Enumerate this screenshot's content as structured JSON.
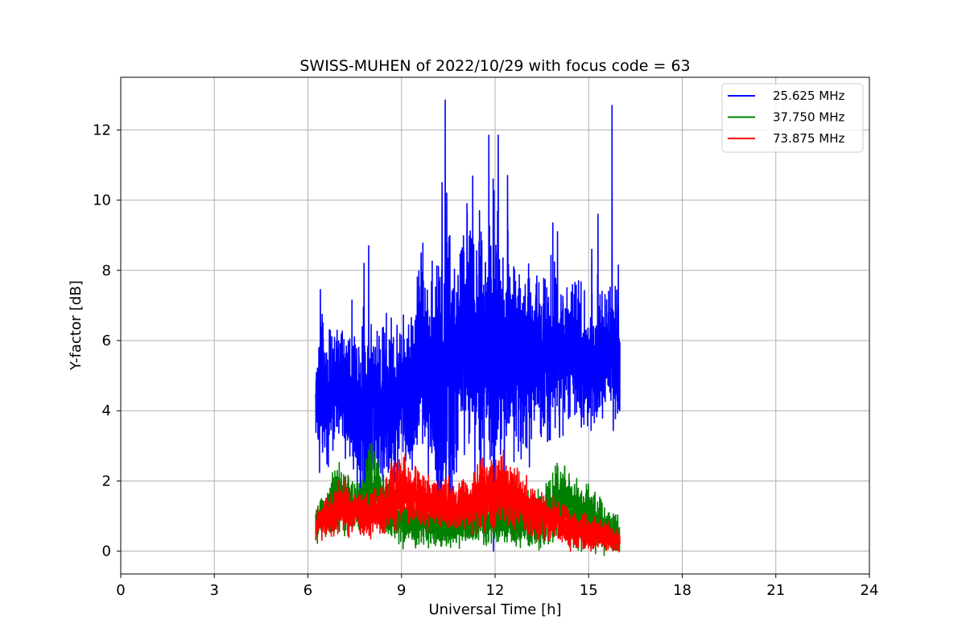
{
  "chart_data": {
    "type": "line",
    "title": "SWISS-MUHEN of 2022/10/29 with focus code = 63",
    "xlabel": "Universal Time [h]",
    "ylabel": "Y-factor [dB]",
    "xlim": [
      0,
      24
    ],
    "ylim": [
      -0.65,
      13.5
    ],
    "xticks": [
      0,
      3,
      6,
      9,
      12,
      15,
      18,
      21,
      24
    ],
    "yticks": [
      0,
      2,
      4,
      6,
      8,
      10,
      12
    ],
    "grid": true,
    "legend_position": "top-right",
    "series": [
      {
        "name": "25.625 MHz",
        "color": "#0000ff",
        "x": [
          6.25,
          6.4,
          6.6,
          6.8,
          7.0,
          7.2,
          7.4,
          7.6,
          7.8,
          7.9,
          8.0,
          8.2,
          8.4,
          8.6,
          8.8,
          9.0,
          9.2,
          9.4,
          9.6,
          9.8,
          10.0,
          10.2,
          10.4,
          10.5,
          10.6,
          10.8,
          11.0,
          11.2,
          11.4,
          11.6,
          11.8,
          12.0,
          12.2,
          12.4,
          12.6,
          12.8,
          13.0,
          13.2,
          13.4,
          13.6,
          13.8,
          14.0,
          14.2,
          14.4,
          14.6,
          14.8,
          15.0,
          15.2,
          15.4,
          15.6,
          15.7,
          15.8,
          16.0
        ],
        "y": [
          4.3,
          4.6,
          4.4,
          4.5,
          4.7,
          4.6,
          4.5,
          4.4,
          4.2,
          4.0,
          4.3,
          4.5,
          4.1,
          4.2,
          4.3,
          4.6,
          4.4,
          4.8,
          5.6,
          5.4,
          5.0,
          4.4,
          4.8,
          5.2,
          4.6,
          5.2,
          6.4,
          6.5,
          6.2,
          6.0,
          5.8,
          5.4,
          5.8,
          6.0,
          5.6,
          5.4,
          5.6,
          5.5,
          5.7,
          5.8,
          5.6,
          5.8,
          5.6,
          5.5,
          5.7,
          5.4,
          5.2,
          5.6,
          5.4,
          5.6,
          5.8,
          5.5,
          5.4
        ],
        "amplitude": [
          0.6,
          1.2,
          0.8,
          0.9,
          0.9,
          1.1,
          1.0,
          1.2,
          1.4,
          1.5,
          1.3,
          1.0,
          1.3,
          1.2,
          1.2,
          1.0,
          1.1,
          1.3,
          1.4,
          1.4,
          1.5,
          2.0,
          2.4,
          2.2,
          2.0,
          1.5,
          1.6,
          1.8,
          1.8,
          1.9,
          2.0,
          2.3,
          1.7,
          1.6,
          1.3,
          1.2,
          1.5,
          1.1,
          1.2,
          1.2,
          1.3,
          1.1,
          1.0,
          0.9,
          1.0,
          1.0,
          1.1,
          1.0,
          0.9,
          0.9,
          0.9,
          1.0,
          0.8
        ],
        "spikes": [
          {
            "x": 6.4,
            "y": 7.45
          },
          {
            "x": 7.8,
            "y": 8.2
          },
          {
            "x": 7.95,
            "y": 8.7
          },
          {
            "x": 8.4,
            "y": 2.0
          },
          {
            "x": 8.75,
            "y": 2.6
          },
          {
            "x": 9.2,
            "y": 3.0
          },
          {
            "x": 10.3,
            "y": 10.5
          },
          {
            "x": 10.4,
            "y": 12.85
          },
          {
            "x": 10.45,
            "y": 10.2
          },
          {
            "x": 10.2,
            "y": 2.3
          },
          {
            "x": 10.9,
            "y": 8.4
          },
          {
            "x": 11.1,
            "y": 9.9
          },
          {
            "x": 11.5,
            "y": 9.7
          },
          {
            "x": 11.65,
            "y": 2.2
          },
          {
            "x": 11.8,
            "y": 11.85
          },
          {
            "x": 11.95,
            "y": 0.0
          },
          {
            "x": 12.1,
            "y": 11.85
          },
          {
            "x": 12.4,
            "y": 10.7
          },
          {
            "x": 12.3,
            "y": 1.7
          },
          {
            "x": 12.6,
            "y": 8.1
          },
          {
            "x": 13.1,
            "y": 2.4
          },
          {
            "x": 13.85,
            "y": 9.35
          },
          {
            "x": 14.0,
            "y": 9.1
          },
          {
            "x": 15.1,
            "y": 8.6
          },
          {
            "x": 15.3,
            "y": 9.6
          },
          {
            "x": 15.75,
            "y": 12.7
          },
          {
            "x": 15.95,
            "y": 8.15
          }
        ]
      },
      {
        "name": "37.750 MHz",
        "color": "#008000",
        "x": [
          6.25,
          6.5,
          6.75,
          7.0,
          7.25,
          7.5,
          7.75,
          8.0,
          8.25,
          8.5,
          8.75,
          9.0,
          9.25,
          9.5,
          9.75,
          10.0,
          10.25,
          10.5,
          10.75,
          11.0,
          11.25,
          11.5,
          11.75,
          12.0,
          12.25,
          12.5,
          12.75,
          13.0,
          13.25,
          13.5,
          13.75,
          14.0,
          14.25,
          14.5,
          14.75,
          15.0,
          15.25,
          15.5,
          15.75,
          16.0
        ],
        "y": [
          0.8,
          1.0,
          1.3,
          1.5,
          1.3,
          1.2,
          1.4,
          2.0,
          1.8,
          1.2,
          1.0,
          0.9,
          0.8,
          0.9,
          0.8,
          0.7,
          0.8,
          0.7,
          0.7,
          0.9,
          0.8,
          0.8,
          0.8,
          1.0,
          0.9,
          0.9,
          0.8,
          0.9,
          0.9,
          1.0,
          1.2,
          1.4,
          1.3,
          1.2,
          1.0,
          1.1,
          0.8,
          0.6,
          0.5,
          0.5
        ],
        "amplitude": [
          0.25,
          0.3,
          0.4,
          0.45,
          0.4,
          0.35,
          0.45,
          0.6,
          0.5,
          0.4,
          0.35,
          0.35,
          0.3,
          0.35,
          0.35,
          0.3,
          0.35,
          0.3,
          0.3,
          0.35,
          0.3,
          0.3,
          0.3,
          0.4,
          0.3,
          0.3,
          0.3,
          0.35,
          0.4,
          0.45,
          0.5,
          0.55,
          0.5,
          0.5,
          0.45,
          0.45,
          0.4,
          0.35,
          0.3,
          0.25
        ]
      },
      {
        "name": "73.875 MHz",
        "color": "#ff0000",
        "x": [
          6.25,
          6.5,
          6.75,
          7.0,
          7.25,
          7.5,
          7.75,
          8.0,
          8.25,
          8.5,
          8.75,
          9.0,
          9.25,
          9.5,
          9.75,
          10.0,
          10.25,
          10.5,
          10.75,
          11.0,
          11.25,
          11.5,
          11.75,
          12.0,
          12.25,
          12.5,
          12.75,
          13.0,
          13.25,
          13.5,
          13.75,
          14.0,
          14.25,
          14.5,
          14.75,
          15.0,
          15.25,
          15.5,
          15.75,
          16.0
        ],
        "y": [
          0.75,
          0.9,
          1.0,
          1.2,
          1.3,
          1.1,
          1.0,
          1.1,
          1.2,
          1.3,
          1.7,
          1.8,
          1.6,
          1.5,
          1.5,
          1.4,
          1.4,
          1.3,
          1.3,
          1.4,
          1.3,
          1.6,
          1.7,
          1.6,
          1.7,
          1.6,
          1.5,
          1.2,
          1.1,
          1.0,
          0.9,
          0.8,
          0.7,
          0.6,
          0.6,
          0.5,
          0.5,
          0.4,
          0.35,
          0.3
        ],
        "amplitude": [
          0.2,
          0.25,
          0.3,
          0.35,
          0.35,
          0.3,
          0.3,
          0.35,
          0.35,
          0.4,
          0.55,
          0.55,
          0.45,
          0.4,
          0.4,
          0.35,
          0.35,
          0.35,
          0.35,
          0.4,
          0.35,
          0.5,
          0.55,
          0.5,
          0.55,
          0.45,
          0.4,
          0.4,
          0.35,
          0.35,
          0.3,
          0.3,
          0.3,
          0.25,
          0.25,
          0.25,
          0.25,
          0.2,
          0.2,
          0.2
        ]
      }
    ]
  }
}
